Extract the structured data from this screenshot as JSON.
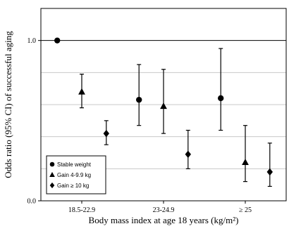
{
  "chart_data": {
    "type": "scatter",
    "subtype": "point-estimate-with-95ci",
    "xlabel": "Body mass index at age 18 years (kg/m²)",
    "ylabel": "Odds ratio (95% CI) of successful aging",
    "categories": [
      "18.5-22.9",
      "23-24.9",
      "≥ 25"
    ],
    "ylim": [
      0.0,
      1.2
    ],
    "y_ticks": [
      0.0,
      1.0
    ],
    "y_tick_labels": [
      "0.0",
      "1.0"
    ],
    "reference_line": 1.0,
    "grid": "horizontal",
    "legend_position": "bottom-left",
    "series": [
      {
        "name": "Stable weight",
        "marker": "circle",
        "points": [
          {
            "category": "18.5-22.9",
            "or": 1.0,
            "lower": null,
            "upper": null
          },
          {
            "category": "23-24.9",
            "or": 0.63,
            "lower": 0.47,
            "upper": 0.85
          },
          {
            "category": "≥ 25",
            "or": 0.64,
            "lower": 0.44,
            "upper": 0.95
          }
        ]
      },
      {
        "name": "Gain 4-9.9 kg",
        "marker": "triangle",
        "points": [
          {
            "category": "18.5-22.9",
            "or": 0.68,
            "lower": 0.58,
            "upper": 0.79
          },
          {
            "category": "23-24.9",
            "or": 0.59,
            "lower": 0.42,
            "upper": 0.82
          },
          {
            "category": "≥ 25",
            "or": 0.24,
            "lower": 0.12,
            "upper": 0.47
          }
        ]
      },
      {
        "name": "Gain ≥ 10 kg",
        "marker": "diamond",
        "points": [
          {
            "category": "18.5-22.9",
            "or": 0.42,
            "lower": 0.35,
            "upper": 0.5
          },
          {
            "category": "23-24.9",
            "or": 0.29,
            "lower": 0.2,
            "upper": 0.44
          },
          {
            "category": "≥ 25",
            "or": 0.18,
            "lower": 0.09,
            "upper": 0.36
          }
        ]
      }
    ]
  }
}
